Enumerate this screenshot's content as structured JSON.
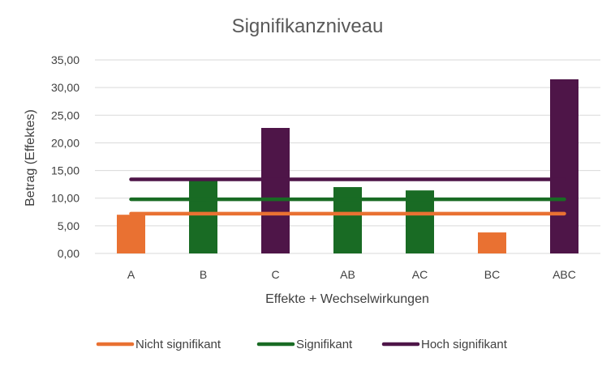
{
  "chart_data": {
    "type": "bar",
    "title": "Signifikanzniveau",
    "xlabel": "Effekte + Wechselwirkungen",
    "ylabel": "Betrag (Effektes)",
    "ylim": [
      0,
      35
    ],
    "yticks": [
      "0,00",
      "5,00",
      "10,00",
      "15,00",
      "20,00",
      "25,00",
      "30,00",
      "35,00"
    ],
    "grid": true,
    "categories": [
      "A",
      "B",
      "C",
      "AB",
      "AC",
      "BC",
      "ABC"
    ],
    "values": [
      7.0,
      13.3,
      22.7,
      12.0,
      11.4,
      3.8,
      31.5
    ],
    "bar_colors": [
      "#E97132",
      "#196B24",
      "#4E1548",
      "#196B24",
      "#196B24",
      "#E97132",
      "#4E1548"
    ],
    "thresholds": [
      {
        "name": "Nicht signifikant",
        "value": 7.2,
        "color": "#E97132"
      },
      {
        "name": "Signifikant",
        "value": 9.8,
        "color": "#196B24"
      },
      {
        "name": "Hoch signifikant",
        "value": 13.4,
        "color": "#4E1548"
      }
    ],
    "legend_position": "bottom"
  }
}
